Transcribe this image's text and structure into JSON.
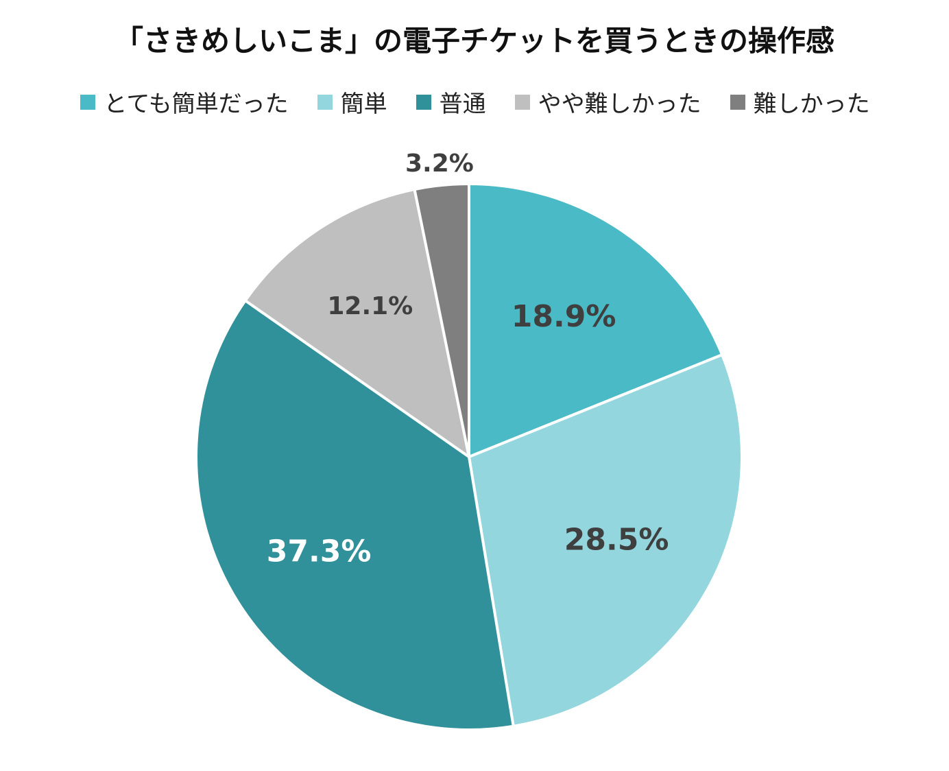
{
  "chart_data": {
    "type": "pie",
    "title": "「さきめしいこま」の電子チケットを買うときの操作感",
    "legend_position": "top",
    "slices": [
      {
        "name": "とても簡単だった",
        "value": 18.9,
        "label": "18.9%",
        "color": "#49BAC6",
        "label_color": "#3F3F3F"
      },
      {
        "name": "簡単",
        "value": 28.5,
        "label": "28.5%",
        "color": "#93D6DE",
        "label_color": "#3F3F3F"
      },
      {
        "name": "普通",
        "value": 37.3,
        "label": "37.3%",
        "color": "#31919A",
        "label_color": "#FFFFFF"
      },
      {
        "name": "やや難しかった",
        "value": 12.1,
        "label": "12.1%",
        "color": "#BFBFBF",
        "label_color": "#3F3F3F"
      },
      {
        "name": "難しかった",
        "value": 3.2,
        "label": "3.2%",
        "color": "#7F7F7F",
        "label_color": "#3F3F3F"
      }
    ]
  }
}
